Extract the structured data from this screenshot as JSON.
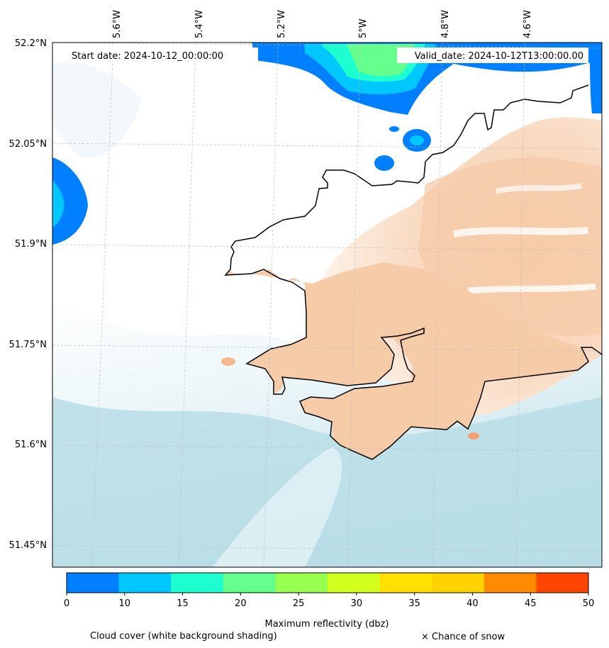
{
  "map": {
    "start_date": "Start date: 2024-10-12_00:00:00",
    "valid_date": "Valid_date: 2024-10-12T13:00:00.00",
    "lon_labels": [
      "5.6°W",
      "5.4°W",
      "5.2°W",
      "5°W",
      "4.8°W",
      "4.6°W"
    ],
    "lat_labels": [
      "52.2°N",
      "52.05°N",
      "51.9°N",
      "51.75°N",
      "51.6°N",
      "51.45°N"
    ]
  },
  "colorbar": {
    "title": "Maximum reflectivity (dbz)",
    "ticks": [
      "0",
      "10",
      "15",
      "20",
      "25",
      "30",
      "35",
      "40",
      "45",
      "50"
    ],
    "colors": [
      "#0080ff",
      "#00c8ff",
      "#1effd0",
      "#64ff8c",
      "#96ff50",
      "#d2ff1e",
      "#ffe100",
      "#ffd200",
      "#ff8c00",
      "#ff4600"
    ]
  },
  "legend": {
    "cloud_cover": "Cloud cover (white background shading)",
    "snow": "× Chance of snow"
  },
  "colors": {
    "sea_cloud": "#b8dde6",
    "land_rain": "#f5c8a0",
    "coastline": "#000000"
  }
}
